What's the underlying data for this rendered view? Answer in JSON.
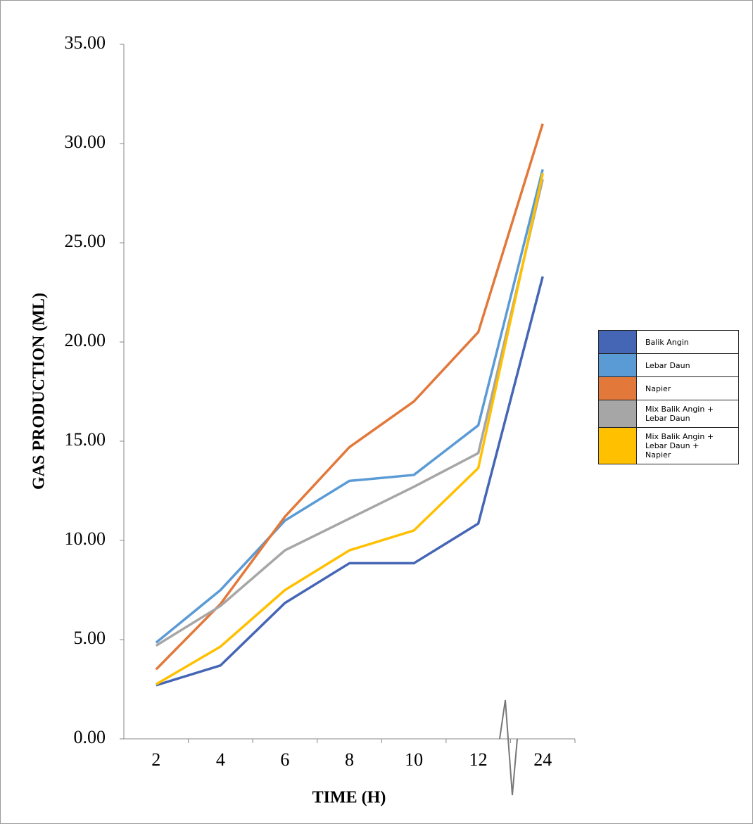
{
  "chart_data": {
    "type": "line",
    "x_label": "TIME (H)",
    "y_label": "GAS PRODUCTION (ML)",
    "categories": [
      "2",
      "4",
      "6",
      "8",
      "10",
      "12",
      "24"
    ],
    "ylim": [
      0,
      35
    ],
    "yticks": [
      {
        "value": 0,
        "label": "0.00"
      },
      {
        "value": 5,
        "label": "5.00"
      },
      {
        "value": 10,
        "label": "10.00"
      },
      {
        "value": 15,
        "label": "15.00"
      },
      {
        "value": 20,
        "label": "20.00"
      },
      {
        "value": 25,
        "label": "25.00"
      },
      {
        "value": 30,
        "label": "30.00"
      },
      {
        "value": 35,
        "label": "35.00"
      }
    ],
    "legend": "right",
    "series": [
      {
        "name": "Balik Angin",
        "color": "#4565b5",
        "values": [
          2.7,
          3.7,
          6.85,
          8.85,
          8.85,
          10.85,
          23.3
        ]
      },
      {
        "name": "Lebar Daun",
        "color": "#5b9bd5",
        "values": [
          4.85,
          7.5,
          11.0,
          13.0,
          13.3,
          15.8,
          28.7
        ]
      },
      {
        "name": "Napier",
        "color": "#e2783a",
        "values": [
          3.5,
          6.8,
          11.2,
          14.7,
          17.0,
          20.5,
          31.0
        ]
      },
      {
        "name": "Mix Balik Angin + Lebar Daun",
        "color": "#a6a6a6",
        "values": [
          4.7,
          6.7,
          9.5,
          11.1,
          12.7,
          14.4,
          28.2
        ]
      },
      {
        "name": "Mix Balik Angin + Lebar Daun + Napier",
        "color": "#ffc000",
        "values": [
          2.75,
          4.65,
          7.5,
          9.5,
          10.5,
          13.65,
          28.5
        ]
      }
    ]
  }
}
